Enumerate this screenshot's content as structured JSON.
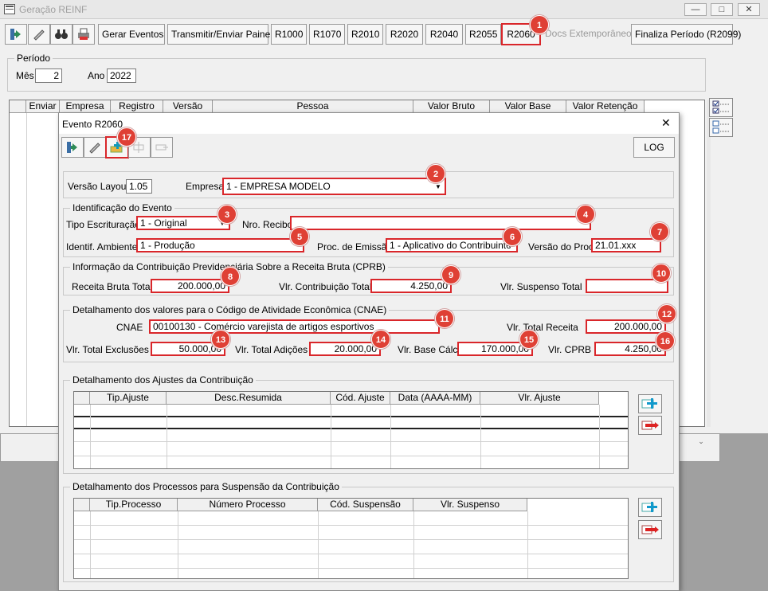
{
  "main_window": {
    "title": "Geração REINF",
    "controls": [
      "minimize-icon",
      "restore-icon",
      "close-icon"
    ]
  },
  "toolbar": {
    "gerar_eventos": "Gerar Eventos",
    "transmitir": "Transmitir/Enviar Painel",
    "r1000": "R1000",
    "r1070": "R1070",
    "r2010": "R2010",
    "r2020": "R2020",
    "r2040": "R2040",
    "r2055": "R2055",
    "r2060": "R2060",
    "docs_extemporaneos": "Docs Extemporâneos",
    "finaliza": "Finaliza Período (R2099)"
  },
  "periodo": {
    "legend": "Período",
    "mes_label": "Mês",
    "mes_value": "2",
    "ano_label": "Ano",
    "ano_value": "2022"
  },
  "main_grid": {
    "columns": [
      "Enviar",
      "Empresa",
      "Registro",
      "Versão",
      "Pessoa",
      "Valor Bruto",
      "Valor Base",
      "Valor Retenção"
    ]
  },
  "dialog": {
    "title": "Evento R2060",
    "log_button": "LOG",
    "versao_layout_label": "Versão Layout",
    "versao_layout_value": "1.05",
    "empresa_label": "Empresa",
    "empresa_value": "1 - EMPRESA MODELO",
    "ident_evento": {
      "legend": "Identificação do Evento",
      "tipo_escrituracao_label": "Tipo Escrituração",
      "tipo_escrituracao_value": "1 - Original",
      "nro_recibo_label": "Nro. Recibo",
      "nro_recibo_value": "",
      "ident_ambiente_label": "Identif. Ambiente",
      "ident_ambiente_value": "1 - Produção",
      "proc_emissao_label": "Proc. de Emissão",
      "proc_emissao_value": "1 - Aplicativo do Contribuinte",
      "versao_proc_label": "Versão do Proc.",
      "versao_proc_value": "21.01.xxx"
    },
    "cprb": {
      "legend": "Informação da Contribuição Previdenciária Sobre a Receita Bruta (CPRB)",
      "receita_bruta_label": "Receita Bruta Total",
      "receita_bruta_value": "200.000,00",
      "vlr_contribuicao_label": "Vlr. Contribuição Total",
      "vlr_contribuicao_value": "4.250,00",
      "vlr_suspenso_label": "Vlr. Suspenso Total",
      "vlr_suspenso_value": ""
    },
    "cnae": {
      "legend": "Detalhamento dos valores para o Código de Atividade Econômica (CNAE)",
      "cnae_label": "CNAE",
      "cnae_value": "00100130 - Comércio varejista de artigos esportivos",
      "vlr_total_receita_label": "Vlr. Total Receita",
      "vlr_total_receita_value": "200.000,00",
      "vlr_total_exclusoes_label": "Vlr. Total Exclusões",
      "vlr_total_exclusoes_value": "50.000,00",
      "vlr_total_adicoes_label": "Vlr. Total Adições",
      "vlr_total_adicoes_value": "20.000,00",
      "vlr_base_calc_label": "Vlr. Base Cálc.",
      "vlr_base_calc_value": "170.000,00",
      "vlr_cprb_label": "Vlr. CPRB",
      "vlr_cprb_value": "4.250,00"
    },
    "ajustes": {
      "legend": "Detalhamento dos Ajustes da Contribuição",
      "columns": [
        "Tip.Ajuste",
        "Desc.Resumida",
        "Cód. Ajuste",
        "Data (AAAA-MM)",
        "Vlr. Ajuste"
      ]
    },
    "processos": {
      "legend": "Detalhamento dos Processos para Suspensão da Contribuição",
      "columns": [
        "Tip.Processo",
        "Número Processo",
        "Cód. Suspensão",
        "Vlr. Suspenso"
      ]
    }
  },
  "badges": [
    "1",
    "2",
    "3",
    "4",
    "5",
    "6",
    "7",
    "8",
    "9",
    "10",
    "11",
    "12",
    "13",
    "14",
    "15",
    "16",
    "17"
  ],
  "colors": {
    "highlight": "#d9262a",
    "badge": "#df4035"
  }
}
